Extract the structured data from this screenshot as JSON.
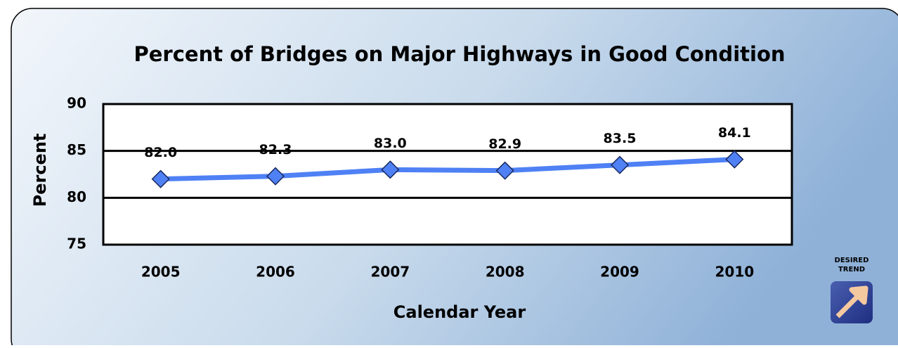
{
  "chart_data": {
    "type": "line",
    "title": "Percent of Bridges on Major Highways in Good Condition",
    "x_label": "Calendar Year",
    "y_label": "Percent",
    "categories": [
      "2005",
      "2006",
      "2007",
      "2008",
      "2009",
      "2010"
    ],
    "series": [
      {
        "name": "Percent",
        "color": "#4f81f5",
        "values": [
          82.0,
          82.3,
          83.0,
          82.9,
          83.5,
          84.1
        ],
        "value_labels": [
          "82.0",
          "82.3",
          "83.0",
          "82.9",
          "83.5",
          "84.1"
        ]
      }
    ],
    "ylim": [
      75,
      90
    ],
    "yticks": [
      75,
      80,
      85,
      90
    ],
    "grid": true,
    "annotations": [
      "DESIRED",
      "TREND"
    ]
  }
}
